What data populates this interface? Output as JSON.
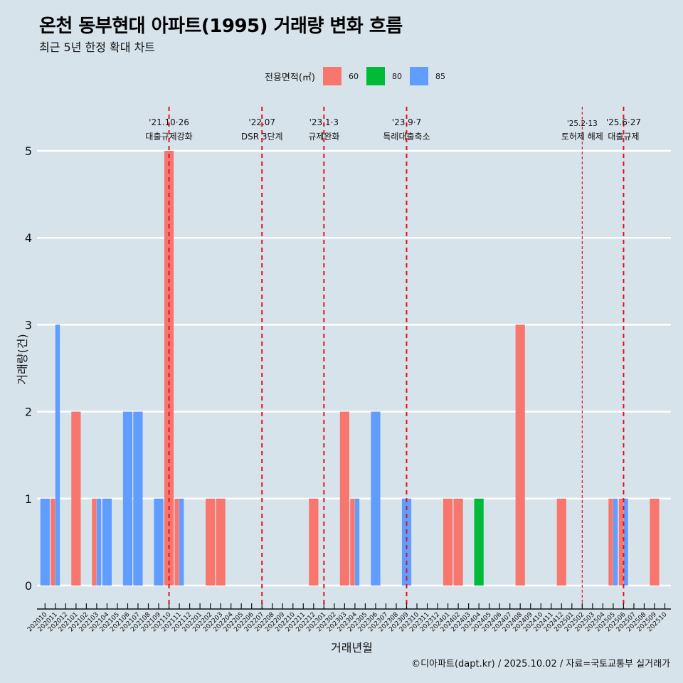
{
  "title": "온천 동부현대 아파트(1995) 거래량 변화 흐름",
  "subtitle": "최근 5년 한정 확대 차트",
  "legend": {
    "title": "전용면적(㎡)",
    "items": [
      {
        "label": "60",
        "color": "#f8766d"
      },
      {
        "label": "80",
        "color": "#00ba38"
      },
      {
        "label": "85",
        "color": "#619cff"
      }
    ]
  },
  "footer": "©디아파트(dapt.kr) / 2025.10.02 / 자료=국토교통부 실거래가",
  "chart_data": {
    "type": "bar",
    "title": "온천 동부현대 아파트(1995) 거래량 변화 흐름",
    "subtitle": "최근 5년 한정 확대 차트",
    "xlabel": "거래년월",
    "ylabel": "거래량(건)",
    "ylim": [
      0,
      5
    ],
    "yticks": [
      0,
      1,
      2,
      3,
      4,
      5
    ],
    "grid": "horizontal",
    "legend_position": "top",
    "categories": [
      "202010",
      "202011",
      "202012",
      "202101",
      "202102",
      "202103",
      "202104",
      "202105",
      "202106",
      "202107",
      "202108",
      "202109",
      "202110",
      "202111",
      "202112",
      "202201",
      "202202",
      "202203",
      "202204",
      "202205",
      "202206",
      "202207",
      "202208",
      "202209",
      "202210",
      "202211",
      "202212",
      "202301",
      "202302",
      "202303",
      "202304",
      "202305",
      "202306",
      "202307",
      "202308",
      "202309",
      "202310",
      "202311",
      "202312",
      "202401",
      "202402",
      "202403",
      "202404",
      "202405",
      "202406",
      "202407",
      "202408",
      "202409",
      "202410",
      "202411",
      "202412",
      "202501",
      "202502",
      "202503",
      "202504",
      "202505",
      "202506",
      "202507",
      "202508",
      "202509",
      "202510"
    ],
    "series": [
      {
        "name": "60",
        "color": "#f8766d",
        "points": [
          {
            "x": "202011",
            "y": 1
          },
          {
            "x": "202101",
            "y": 2
          },
          {
            "x": "202103",
            "y": 1
          },
          {
            "x": "202110",
            "y": 5
          },
          {
            "x": "202111",
            "y": 1
          },
          {
            "x": "202202",
            "y": 1
          },
          {
            "x": "202203",
            "y": 1
          },
          {
            "x": "202212",
            "y": 1
          },
          {
            "x": "202303",
            "y": 2
          },
          {
            "x": "202304",
            "y": 1
          },
          {
            "x": "202401",
            "y": 1
          },
          {
            "x": "202402",
            "y": 1
          },
          {
            "x": "202408",
            "y": 3
          },
          {
            "x": "202412",
            "y": 1
          },
          {
            "x": "202505",
            "y": 1
          },
          {
            "x": "202506",
            "y": 1
          },
          {
            "x": "202509",
            "y": 1
          }
        ]
      },
      {
        "name": "80",
        "color": "#00ba38",
        "points": [
          {
            "x": "202404",
            "y": 1
          }
        ]
      },
      {
        "name": "85",
        "color": "#619cff",
        "points": [
          {
            "x": "202010",
            "y": 1
          },
          {
            "x": "202011",
            "y": 3
          },
          {
            "x": "202103",
            "y": 1
          },
          {
            "x": "202104",
            "y": 1
          },
          {
            "x": "202106",
            "y": 2
          },
          {
            "x": "202107",
            "y": 2
          },
          {
            "x": "202109",
            "y": 1
          },
          {
            "x": "202111",
            "y": 1
          },
          {
            "x": "202304",
            "y": 1
          },
          {
            "x": "202306",
            "y": 2
          },
          {
            "x": "202309",
            "y": 1
          },
          {
            "x": "202505",
            "y": 1
          },
          {
            "x": "202506",
            "y": 1
          }
        ]
      }
    ],
    "annotations": [
      {
        "x": "202110",
        "date": "'21.10·26",
        "label": "대출규제강화",
        "style": "thick"
      },
      {
        "x": "202207",
        "date": "'22.07",
        "label": "DSR 3단계",
        "style": "thick"
      },
      {
        "x": "202301",
        "date": "'23.1·3",
        "label": "규제완화",
        "style": "thick"
      },
      {
        "x": "202309",
        "date": "'23.9·7",
        "label": "특례대출축소",
        "style": "thick"
      },
      {
        "x": "202502",
        "date": "'25.2·13",
        "label": "토허제 해제",
        "style": "thin"
      },
      {
        "x": "202506",
        "date": "'25.6·27",
        "label": "대출규제",
        "style": "thick"
      }
    ]
  }
}
